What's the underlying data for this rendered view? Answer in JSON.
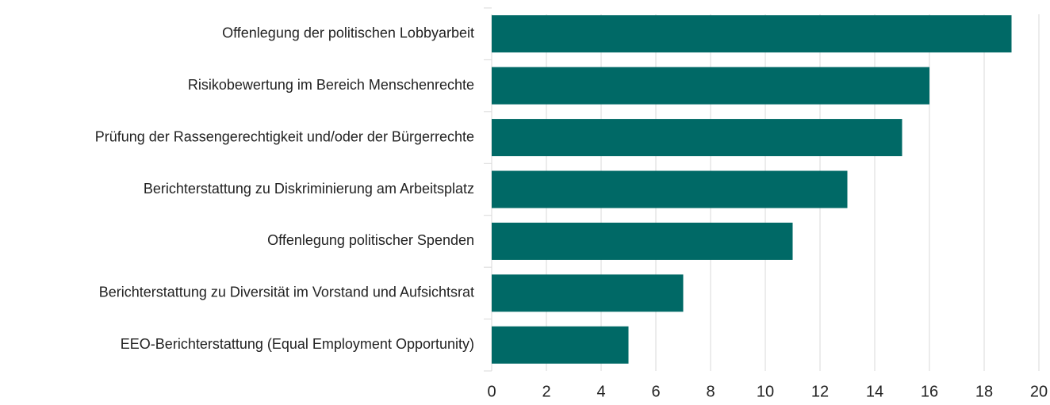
{
  "chart_data": {
    "type": "bar",
    "orientation": "horizontal",
    "categories": [
      "Offenlegung der politischen Lobbyarbeit",
      "Risikobewertung im Bereich Menschenrechte",
      "Prüfung der Rassengerechtigkeit und/oder der Bürgerrechte",
      "Berichterstattung zu Diskriminierung am Arbeitsplatz",
      "Offenlegung politischer Spenden",
      "Berichterstattung zu Diversität im Vorstand und Aufsichtsrat",
      "EEO-Berichterstattung (Equal Employment Opportunity)"
    ],
    "values": [
      19,
      16,
      15,
      13,
      11,
      7,
      5
    ],
    "color": "#006966",
    "xlim": [
      0,
      20
    ],
    "xticks": [
      0,
      2,
      4,
      6,
      8,
      10,
      12,
      14,
      16,
      18,
      20
    ],
    "grid": true
  }
}
